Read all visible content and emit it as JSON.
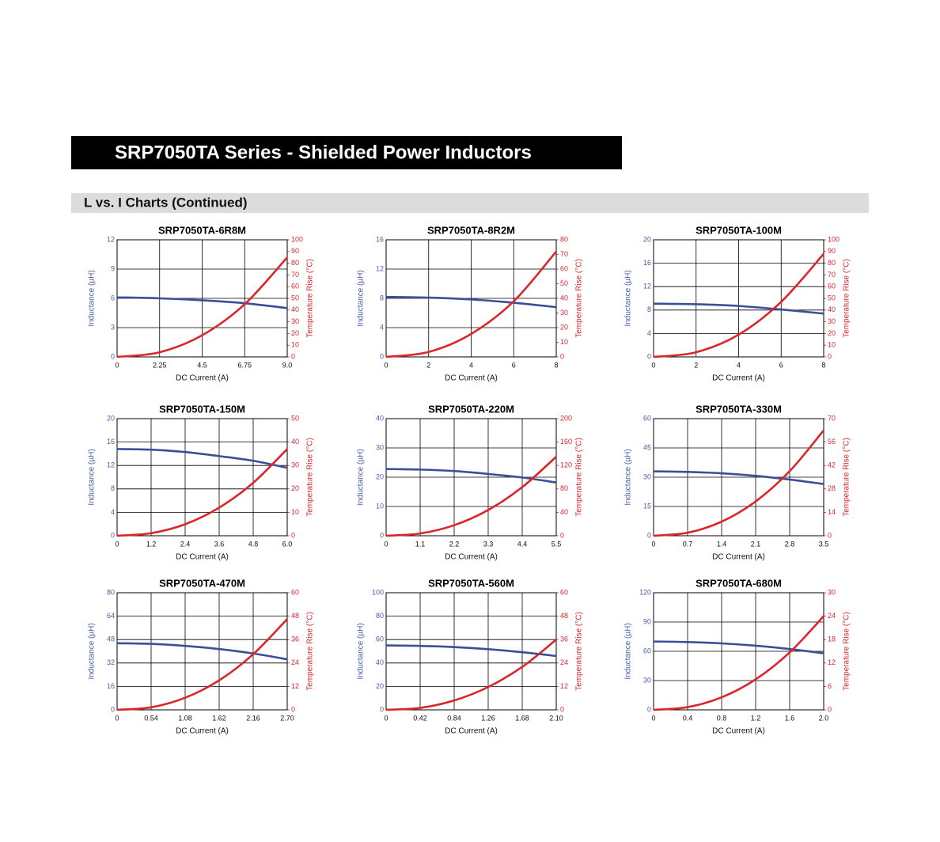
{
  "header": {
    "title": "SRP7050TA Series - Shielded Power Inductors"
  },
  "section": {
    "title": "L vs. I Charts (Continued)"
  },
  "chart_data": [
    {
      "type": "line",
      "title": "SRP7050TA-6R8M",
      "xlabel": "DC Current (A)",
      "ylabel": "Inductance (µH)",
      "y2label": "Temperature Rise (°C)",
      "grid": true,
      "x": [
        0,
        2.25,
        4.5,
        6.75,
        9
      ],
      "xlim": [
        0,
        9
      ],
      "xticks": [
        0,
        2.25,
        4.5,
        6.75,
        {
          "value": 9,
          "label": "9.0"
        }
      ],
      "ylim": [
        0,
        12
      ],
      "yticks": [
        0,
        3,
        6,
        9,
        12
      ],
      "y2lim": [
        0,
        100
      ],
      "y2ticks": [
        0,
        10,
        20,
        30,
        40,
        50,
        60,
        70,
        80,
        90,
        100
      ],
      "series": [
        {
          "color": "#3b4f99",
          "values": [
            6.1,
            6.0,
            5.8,
            5.5,
            5.0
          ]
        },
        {
          "color": "#d9262c",
          "axis": "y2",
          "values": [
            0,
            4,
            18.5,
            45,
            85
          ]
        }
      ]
    },
    {
      "type": "line",
      "title": "SRP7050TA-8R2M",
      "xlabel": "DC Current (A)",
      "ylabel": "Inductance (µH)",
      "y2label": "Temperature Rise (°C)",
      "grid": true,
      "x": [
        0,
        2,
        4,
        6,
        8
      ],
      "xlim": [
        0,
        8
      ],
      "xticks": [
        0,
        2,
        4,
        6,
        8
      ],
      "ylim": [
        0,
        16
      ],
      "yticks": [
        0,
        4,
        8,
        12,
        16
      ],
      "y2lim": [
        0,
        80
      ],
      "y2ticks": [
        0,
        10,
        20,
        30,
        40,
        50,
        60,
        70,
        80
      ],
      "series": [
        {
          "color": "#3b4f99",
          "values": [
            8.2,
            8.1,
            7.85,
            7.4,
            6.8
          ]
        },
        {
          "color": "#d9262c",
          "axis": "y2",
          "values": [
            0,
            3.4,
            15.7,
            38,
            72
          ]
        }
      ]
    },
    {
      "type": "line",
      "title": "SRP7050TA-100M",
      "xlabel": "DC Current (A)",
      "ylabel": "Inductance (µH)",
      "y2label": "Temperature Rise (°C)",
      "grid": true,
      "x": [
        0,
        2,
        4,
        6,
        8
      ],
      "xlim": [
        0,
        8
      ],
      "xticks": [
        0,
        2,
        4,
        6,
        8
      ],
      "ylim": [
        0,
        20
      ],
      "yticks": [
        0,
        4,
        8,
        12,
        16,
        20
      ],
      "y2lim": [
        0,
        100
      ],
      "y2ticks": [
        0,
        10,
        20,
        30,
        40,
        50,
        60,
        70,
        80,
        90,
        100
      ],
      "series": [
        {
          "color": "#3b4f99",
          "values": [
            9.1,
            9.0,
            8.7,
            8.1,
            7.4
          ]
        },
        {
          "color": "#d9262c",
          "axis": "y2",
          "values": [
            0,
            4,
            19,
            47,
            88
          ]
        }
      ]
    },
    {
      "type": "line",
      "title": "SRP7050TA-150M",
      "xlabel": "DC Current (A)",
      "ylabel": "Inductance (µH)",
      "y2label": "Temperature Rise (°C)",
      "grid": true,
      "x": [
        0,
        1.2,
        2.4,
        3.6,
        4.8,
        6
      ],
      "xlim": [
        0,
        6
      ],
      "xticks": [
        0,
        1.2,
        2.4,
        3.6,
        4.8,
        {
          "value": 6,
          "label": "6.0"
        }
      ],
      "ylim": [
        0,
        20
      ],
      "yticks": [
        0,
        4,
        8,
        12,
        16,
        20
      ],
      "y2lim": [
        0,
        50
      ],
      "y2ticks": [
        0,
        10,
        20,
        30,
        40,
        50
      ],
      "series": [
        {
          "color": "#3b4f99",
          "values": [
            14.8,
            14.7,
            14.3,
            13.6,
            12.8,
            11.6
          ]
        },
        {
          "color": "#d9262c",
          "axis": "y2",
          "values": [
            0,
            1.1,
            4.9,
            12,
            22.6,
            37
          ]
        }
      ]
    },
    {
      "type": "line",
      "title": "SRP7050TA-220M",
      "xlabel": "DC Current (A)",
      "ylabel": "Inductance (µH)",
      "y2label": "Temperature Rise (°C)",
      "grid": true,
      "x": [
        0,
        1.1,
        2.2,
        3.3,
        4.4,
        5.5
      ],
      "xlim": [
        0,
        5.5
      ],
      "xticks": [
        0,
        1.1,
        2.2,
        3.3,
        4.4,
        5.5
      ],
      "ylim": [
        0,
        40
      ],
      "yticks": [
        0,
        10,
        20,
        30,
        40
      ],
      "y2lim": [
        0,
        200
      ],
      "y2ticks": [
        0,
        40,
        80,
        120,
        160,
        200
      ],
      "series": [
        {
          "color": "#3b4f99",
          "values": [
            22.8,
            22.6,
            22.1,
            21.1,
            19.9,
            18.2
          ]
        },
        {
          "color": "#d9262c",
          "axis": "y2",
          "values": [
            0,
            3.9,
            18,
            44,
            83,
            135
          ]
        }
      ]
    },
    {
      "type": "line",
      "title": "SRP7050TA-330M",
      "xlabel": "DC Current (A)",
      "ylabel": "Inductance (µH)",
      "y2label": "Temperature Rise (°C)",
      "grid": true,
      "x": [
        0,
        0.7,
        1.4,
        2.1,
        2.8,
        3.5
      ],
      "xlim": [
        0,
        3.5
      ],
      "xticks": [
        0,
        0.7,
        1.4,
        2.1,
        2.8,
        3.5
      ],
      "ylim": [
        0,
        60
      ],
      "yticks": [
        0,
        15,
        30,
        45,
        60
      ],
      "y2lim": [
        0,
        70
      ],
      "y2ticks": [
        0,
        14,
        28,
        42,
        56,
        70
      ],
      "series": [
        {
          "color": "#3b4f99",
          "values": [
            33,
            32.7,
            32,
            30.7,
            28.8,
            26.5
          ]
        },
        {
          "color": "#d9262c",
          "axis": "y2",
          "values": [
            0,
            1.8,
            8.4,
            20.5,
            38.6,
            63
          ]
        }
      ]
    },
    {
      "type": "line",
      "title": "SRP7050TA-470M",
      "xlabel": "DC Current (A)",
      "ylabel": "Inductance (µH)",
      "y2label": "Temperature Rise (°C)",
      "grid": true,
      "x": [
        0,
        0.54,
        1.08,
        1.62,
        2.16,
        2.7
      ],
      "xlim": [
        0,
        2.7
      ],
      "xticks": [
        0,
        0.54,
        1.08,
        1.62,
        2.16,
        {
          "value": 2.7,
          "label": "2.70"
        }
      ],
      "ylim": [
        0,
        80
      ],
      "yticks": [
        0,
        16,
        32,
        48,
        64,
        80
      ],
      "y2lim": [
        0,
        60
      ],
      "y2ticks": [
        0,
        12,
        24,
        36,
        48,
        60
      ],
      "series": [
        {
          "color": "#3b4f99",
          "values": [
            45.5,
            45.1,
            43.7,
            41.5,
            38.5,
            34.5
          ]
        },
        {
          "color": "#d9262c",
          "axis": "y2",
          "values": [
            0,
            1.3,
            6.2,
            15.1,
            28.5,
            46.5
          ]
        }
      ]
    },
    {
      "type": "line",
      "title": "SRP7050TA-560M",
      "xlabel": "DC Current (A)",
      "ylabel": "Inductance (µH)",
      "y2label": "Temperature Rise (°C)",
      "grid": true,
      "x": [
        0,
        0.42,
        0.84,
        1.26,
        1.68,
        2.1
      ],
      "xlim": [
        0,
        2.1
      ],
      "xticks": [
        0,
        0.42,
        0.84,
        1.26,
        1.68,
        {
          "value": 2.1,
          "label": "2.10"
        }
      ],
      "ylim": [
        0,
        100
      ],
      "yticks": [
        0,
        20,
        40,
        60,
        80,
        100
      ],
      "y2lim": [
        0,
        60
      ],
      "y2ticks": [
        0,
        12,
        24,
        36,
        48,
        60
      ],
      "series": [
        {
          "color": "#3b4f99",
          "values": [
            55,
            54.6,
            53.6,
            51.8,
            49.2,
            46
          ]
        },
        {
          "color": "#d9262c",
          "axis": "y2",
          "values": [
            0,
            1,
            4.8,
            11.7,
            22,
            36
          ]
        }
      ]
    },
    {
      "type": "line",
      "title": "SRP7050TA-680M",
      "xlabel": "DC Current (A)",
      "ylabel": "Inductance (µH)",
      "y2label": "Temperature Rise (°C)",
      "grid": true,
      "x": [
        0,
        0.4,
        0.8,
        1.2,
        1.6,
        2
      ],
      "xlim": [
        0,
        2
      ],
      "xticks": [
        0,
        0.4,
        0.8,
        1.2,
        1.6,
        {
          "value": 2,
          "label": "2.0"
        }
      ],
      "ylim": [
        0,
        120
      ],
      "yticks": [
        0,
        30,
        60,
        90,
        120
      ],
      "y2lim": [
        0,
        30
      ],
      "y2ticks": [
        0,
        6,
        12,
        18,
        24,
        30
      ],
      "series": [
        {
          "color": "#3b4f99",
          "values": [
            70,
            69.5,
            68.1,
            65.7,
            62.3,
            58
          ]
        },
        {
          "color": "#d9262c",
          "axis": "y2",
          "values": [
            0,
            0.7,
            3.2,
            7.8,
            14.7,
            24
          ]
        }
      ]
    }
  ]
}
